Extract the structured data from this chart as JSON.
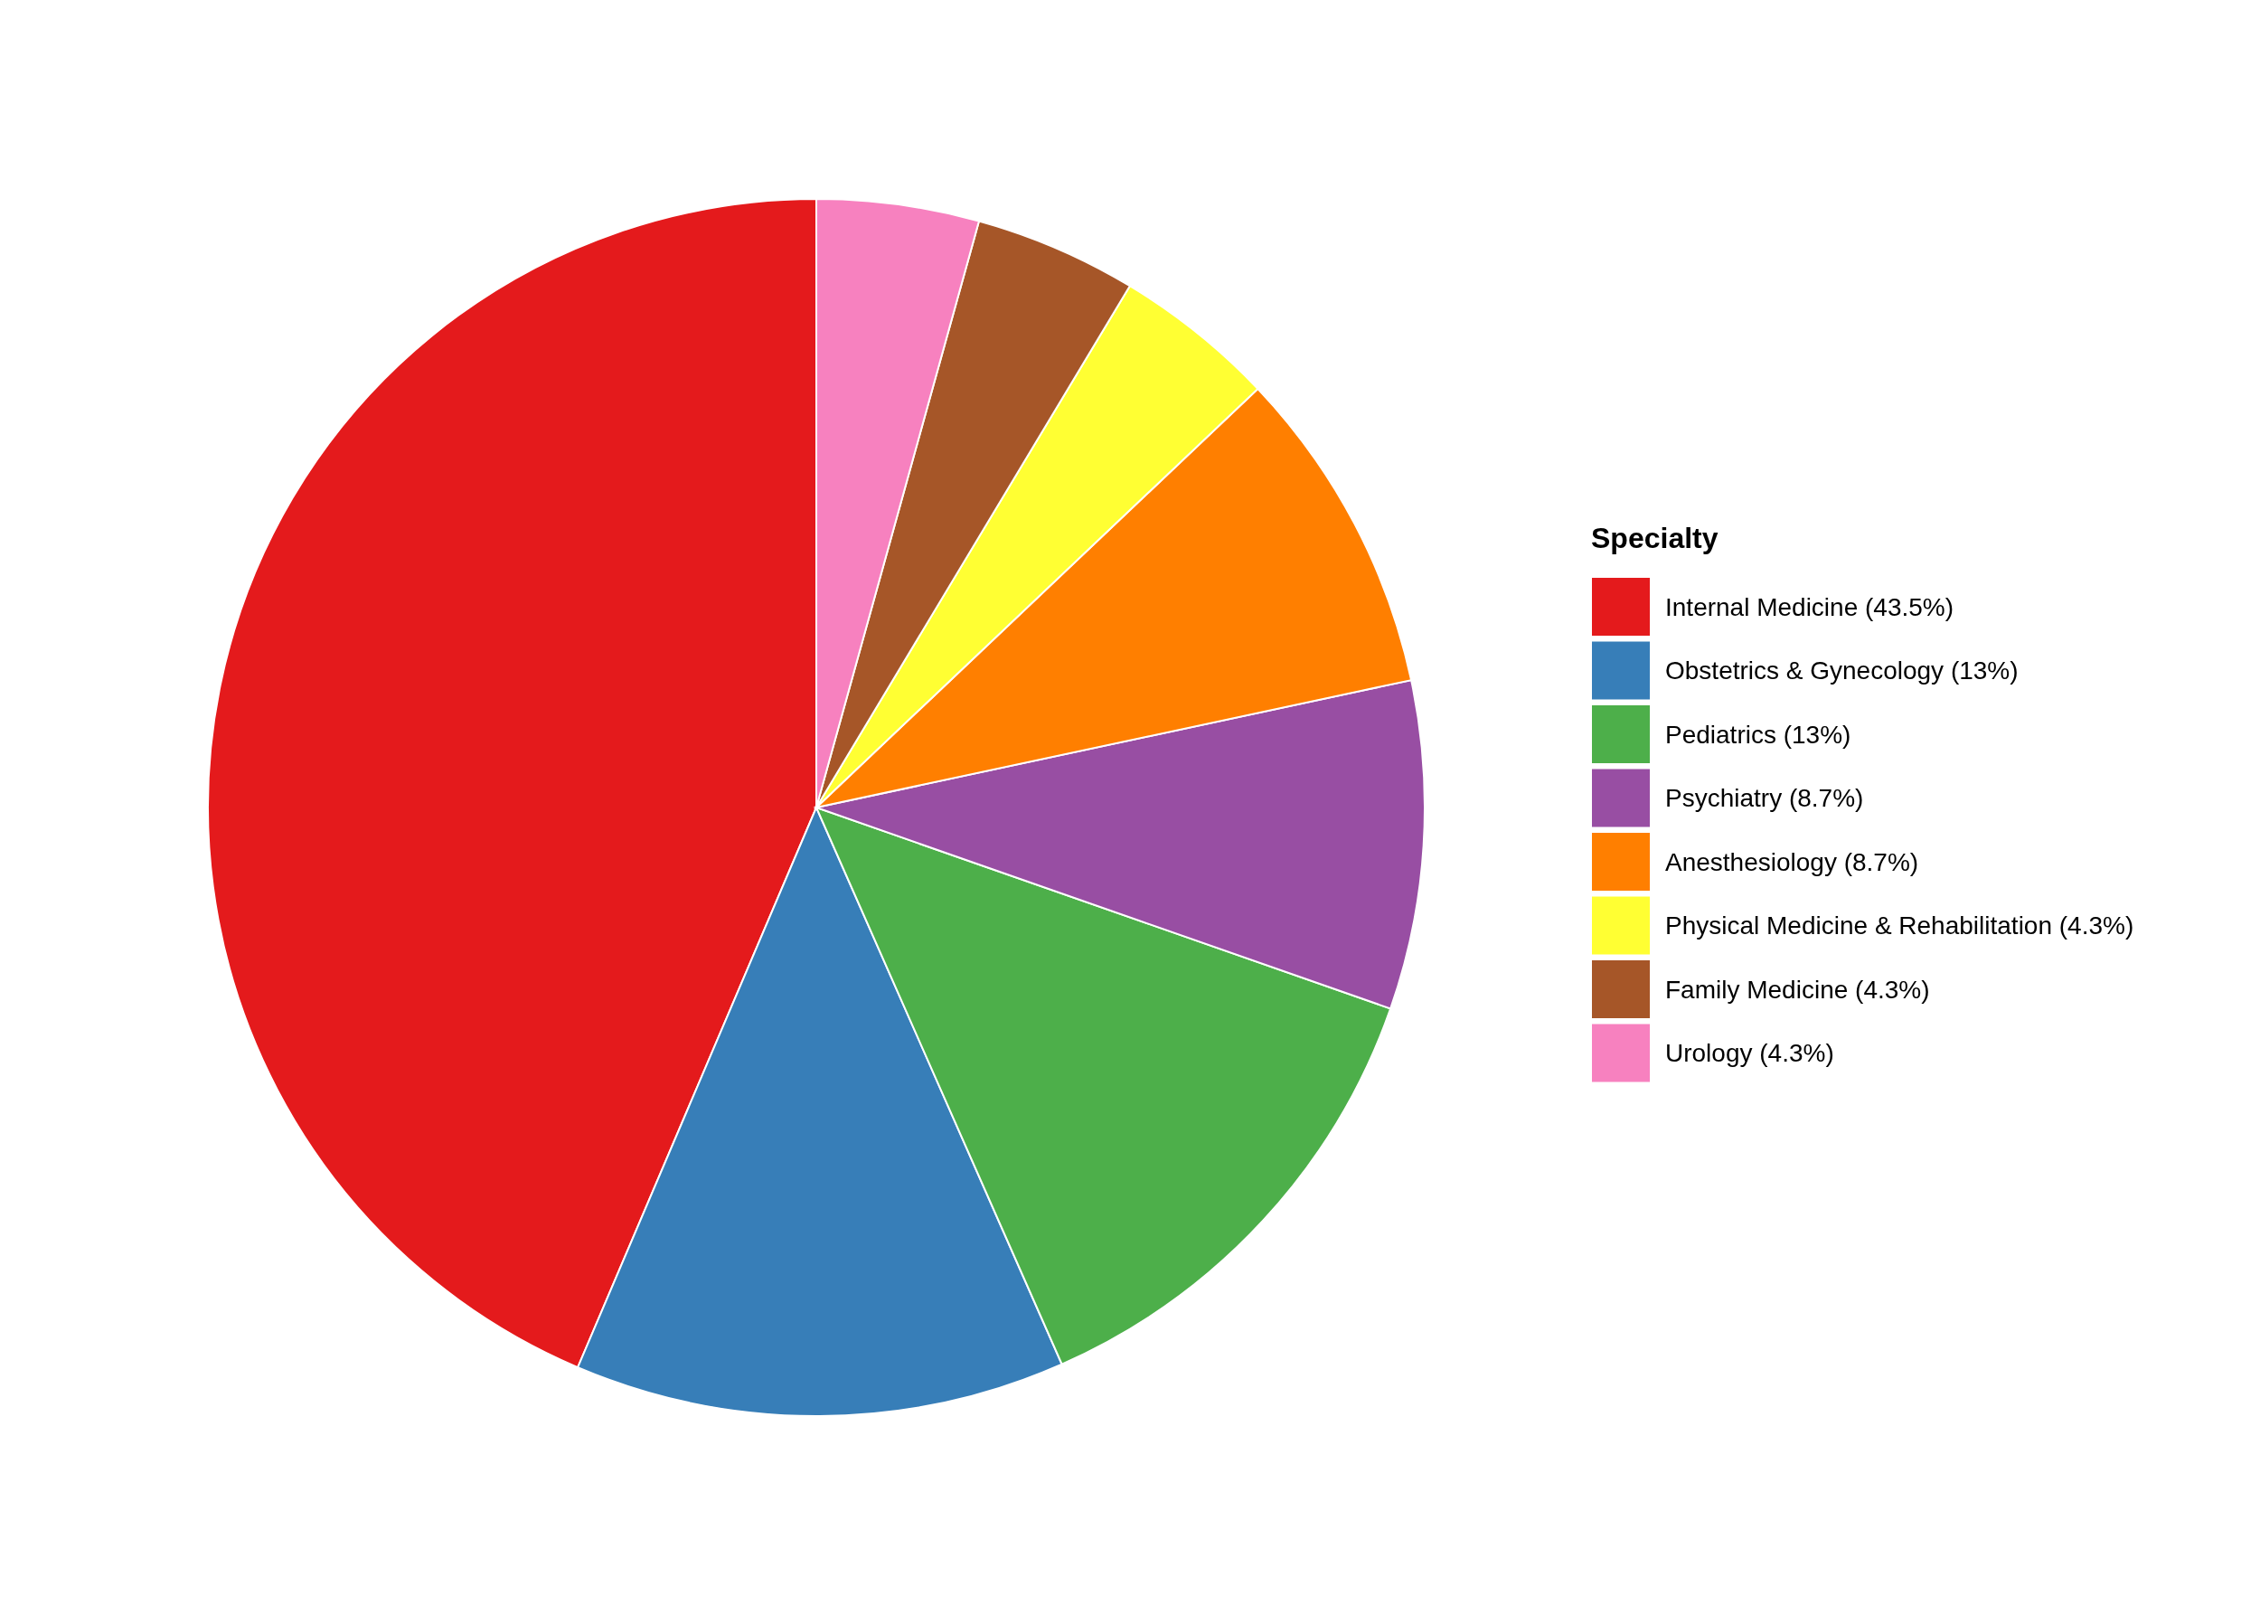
{
  "chart_data": {
    "type": "pie",
    "legend_title": "Specialty",
    "categories": [
      "Internal Medicine (43.5%)",
      "Obstetrics & Gynecology (13%)",
      "Pediatrics (13%)",
      "Psychiatry (8.7%)",
      "Anesthesiology (8.7%)",
      "Physical Medicine & Rehabilitation (4.3%)",
      "Family Medicine (4.3%)",
      "Urology (4.3%)"
    ],
    "values": [
      43.5,
      13,
      13,
      8.7,
      8.7,
      4.3,
      4.3,
      4.3
    ],
    "colors": [
      "#e41a1c",
      "#377eb8",
      "#4daf4a",
      "#984ea3",
      "#ff7f00",
      "#ffff33",
      "#a65628",
      "#f781bf"
    ],
    "legend": "right"
  }
}
